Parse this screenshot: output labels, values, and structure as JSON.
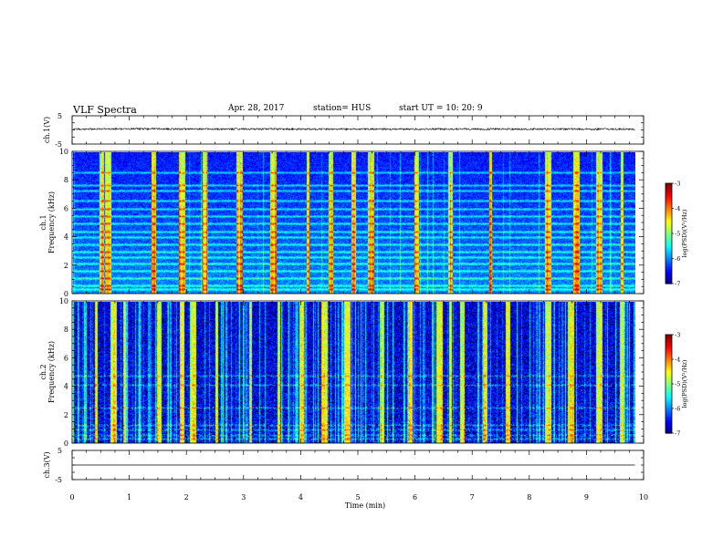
{
  "header": {
    "title": "VLF Spectra",
    "date": "Apr. 28, 2017",
    "station": "station= HUS",
    "start": "start  UT =   10: 20: 9"
  },
  "chart_data": [
    {
      "type": "line",
      "panel": "ch1-waveform",
      "ylabel": "ch.1(V)",
      "ylim": [
        -5,
        5
      ],
      "yticks": [
        "5",
        "-5"
      ],
      "xlim": [
        0,
        10
      ],
      "x": [
        0,
        1,
        2,
        3,
        4,
        5,
        6,
        7,
        8,
        9,
        9.85
      ],
      "y": [
        0.3,
        0.4,
        0.3,
        0.3,
        0.3,
        0.3,
        0.3,
        0.3,
        0.3,
        0.3,
        0.3
      ],
      "noise_amplitude": 0.3
    },
    {
      "type": "heatmap",
      "panel": "ch1-spectrogram",
      "ylabel": "ch.1\nFrequency  (kHz)",
      "ylim": [
        0,
        10
      ],
      "yticks": [
        "0",
        "2",
        "4",
        "6",
        "8",
        "10"
      ],
      "xlim": [
        0,
        10
      ],
      "data_end_min": 9.85,
      "horizontal_lines_khz": [
        0.3,
        0.55,
        1.1,
        1.6,
        2.1,
        2.6,
        3.0,
        3.5,
        4.0,
        4.4,
        5.0,
        5.5,
        6.0,
        6.6,
        7.3,
        7.7,
        8.6
      ],
      "bright_vertical_streaks_min": [
        0.5,
        0.6,
        1.4,
        1.9,
        2.3,
        2.9,
        3.5,
        4.1,
        4.5,
        4.9,
        5.2,
        6.0,
        6.6,
        7.3,
        8.3,
        8.8,
        9.2,
        9.6
      ],
      "colorbar": {
        "label": "log(PSD)(V²/Hz)",
        "range": [
          -7,
          -3
        ],
        "ticks": [
          "-3",
          "-4",
          "-5",
          "-6",
          "-7"
        ]
      }
    },
    {
      "type": "heatmap",
      "panel": "ch2-spectrogram",
      "ylabel": "ch.2\nFrequency  (kHz)",
      "ylim": [
        0,
        10
      ],
      "yticks": [
        "0",
        "2",
        "4",
        "6",
        "8",
        "10"
      ],
      "xlim": [
        0,
        10
      ],
      "data_end_min": 9.85,
      "horizontal_lines_khz": [
        0.3,
        0.6,
        1.0,
        1.3,
        2.5,
        4.1,
        4.8
      ],
      "bright_vertical_streaks_min": [
        0.4,
        0.7,
        0.9,
        1.5,
        1.9,
        2.1,
        2.5,
        3.1,
        3.6,
        4.0,
        4.4,
        4.8,
        5.4,
        5.9,
        6.4,
        6.6,
        6.8,
        7.2,
        7.6,
        8.3,
        8.7,
        9.2,
        9.6
      ],
      "colorbar": {
        "label": "log(PSD)(V²/Hz)",
        "range": [
          -7,
          -3
        ],
        "ticks": [
          "-3",
          "-4",
          "-5",
          "-6",
          "-7"
        ]
      }
    },
    {
      "type": "line",
      "panel": "ch3-waveform",
      "ylabel": "ch.3(V)",
      "ylim": [
        -5,
        5
      ],
      "yticks": [
        "5",
        "-5"
      ],
      "xlim": [
        0,
        10
      ],
      "x": [
        0,
        9.85
      ],
      "y": [
        0,
        0
      ],
      "noise_amplitude": 0
    }
  ],
  "x_axis": {
    "xlabel": "Time  (min)",
    "xlim": [
      0,
      10
    ],
    "ticks": [
      "0",
      "1",
      "2",
      "3",
      "4",
      "5",
      "6",
      "7",
      "8",
      "9",
      "10"
    ]
  }
}
